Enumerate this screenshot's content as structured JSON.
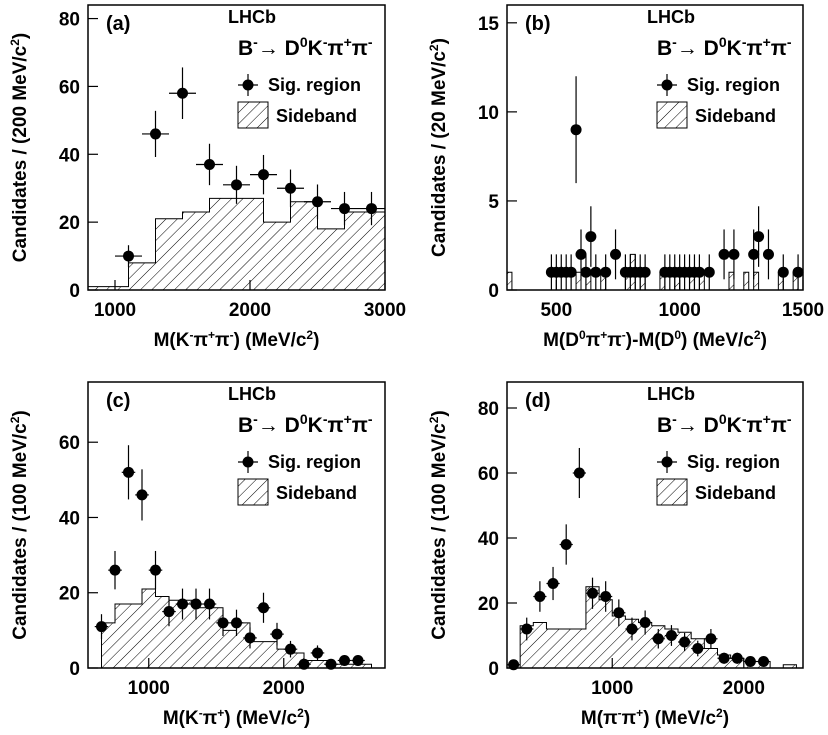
{
  "colors": {
    "ink": "#000000",
    "background": "#ffffff"
  },
  "chart_data": [
    {
      "type": "histogram",
      "panel_label": "(a)",
      "experiment": "LHCb",
      "decay": {
        "parts": [
          "B",
          "-",
          "→ D",
          "0",
          "K",
          "-",
          "π",
          "+",
          "π",
          "-"
        ]
      },
      "legend": {
        "data_label": "Sig. region",
        "band_label": "Sideband",
        "placement": "top-right"
      },
      "xlabel": {
        "parts": [
          "M(K",
          "-",
          "π",
          "+",
          "π",
          "-",
          ") (MeV/c",
          "2",
          ")"
        ]
      },
      "ylabel": {
        "parts": [
          "Candidates / (200 MeV/c",
          "2",
          ")"
        ]
      },
      "xlim": [
        800,
        3000
      ],
      "ylim": [
        0,
        84
      ],
      "xticks": [
        1000,
        2000,
        3000
      ],
      "yticks": [
        0,
        20,
        40,
        60,
        80
      ],
      "sideband": {
        "edges": [
          800,
          1000,
          1100,
          1300,
          1500,
          1700,
          1900,
          2100,
          2300,
          2500,
          2700,
          2900,
          3000
        ],
        "values": [
          1,
          1,
          8,
          21,
          23,
          27,
          27,
          20,
          26,
          18,
          23,
          23
        ]
      },
      "signal": {
        "x": [
          1100,
          1300,
          1500,
          1700,
          1900,
          2100,
          2300,
          2500,
          2700,
          2900
        ],
        "y": [
          10,
          46,
          58,
          37,
          31,
          34,
          30,
          26,
          24,
          24
        ],
        "err": [
          3.2,
          6.8,
          7.6,
          6.1,
          5.6,
          5.8,
          5.5,
          5.1,
          4.9,
          4.9
        ],
        "xerr": 100
      }
    },
    {
      "type": "histogram",
      "panel_label": "(b)",
      "experiment": "LHCb",
      "decay": {
        "parts": [
          "B",
          "-",
          "→ D",
          "0",
          "K",
          "-",
          "π",
          "+",
          "π",
          "-"
        ]
      },
      "legend": {
        "data_label": "Sig. region",
        "band_label": "Sideband",
        "placement": "top-right"
      },
      "xlabel": {
        "parts": [
          "M(D",
          "0",
          "π",
          "+",
          "π",
          "-",
          ")-M(D",
          "0",
          ") (MeV/c",
          "2",
          ")"
        ]
      },
      "ylabel": {
        "parts": [
          "Candidates / (20 MeV/c",
          "2",
          ")"
        ]
      },
      "xlim": [
        300,
        1500
      ],
      "ylim": [
        0,
        16
      ],
      "xticks": [
        500,
        1000,
        1500
      ],
      "yticks": [
        0,
        5,
        10,
        15
      ],
      "sideband": {
        "edges": [
          300,
          320,
          340,
          360,
          380,
          400,
          420,
          440,
          460,
          480,
          500,
          520,
          540,
          560,
          580,
          600,
          620,
          640,
          660,
          680,
          700,
          720,
          740,
          760,
          780,
          800,
          820,
          840,
          860,
          880,
          900,
          920,
          940,
          960,
          980,
          1000,
          1020,
          1040,
          1060,
          1080,
          1100,
          1120,
          1140,
          1160,
          1180,
          1200,
          1220,
          1240,
          1260,
          1280,
          1300,
          1320,
          1340,
          1360,
          1380,
          1400,
          1420,
          1440,
          1460,
          1480,
          1500
        ],
        "values": [
          1,
          0,
          0,
          0,
          0,
          0,
          0,
          0,
          0,
          0,
          0,
          0,
          0,
          0,
          1,
          0,
          1,
          0,
          0,
          1,
          0,
          0,
          0,
          0,
          1,
          2,
          0,
          1,
          0,
          0,
          0,
          1,
          0,
          0,
          1,
          0,
          0,
          1,
          0,
          1,
          0,
          0,
          0,
          0,
          0,
          1,
          0,
          0,
          1,
          0,
          1,
          0,
          0,
          0,
          0,
          1,
          0,
          0,
          1,
          0
        ]
      },
      "signal": {
        "x": [
          480,
          500,
          520,
          540,
          560,
          580,
          600,
          620,
          640,
          660,
          700,
          740,
          780,
          800,
          820,
          840,
          860,
          940,
          960,
          980,
          1000,
          1020,
          1040,
          1060,
          1080,
          1120,
          1180,
          1220,
          1300,
          1320,
          1360,
          1420,
          1480
        ],
        "y": [
          1,
          1,
          1,
          1,
          1,
          9,
          2,
          1,
          3,
          1,
          1,
          2,
          1,
          1,
          1,
          1,
          1,
          1,
          1,
          1,
          1,
          1,
          1,
          1,
          1,
          1,
          2,
          2,
          2,
          3,
          2,
          1,
          1
        ],
        "err": [
          1,
          1,
          1,
          1,
          1,
          3,
          1.4,
          1,
          1.7,
          1,
          1,
          1.4,
          1,
          1,
          1,
          1,
          1,
          1,
          1,
          1,
          1,
          1,
          1,
          1,
          1,
          1,
          1.4,
          1.4,
          1.4,
          1.7,
          1.4,
          1,
          1
        ],
        "xerr": 10
      }
    },
    {
      "type": "histogram",
      "panel_label": "(c)",
      "experiment": "LHCb",
      "decay": {
        "parts": [
          "B",
          "-",
          "→ D",
          "0",
          "K",
          "-",
          "π",
          "+",
          "π",
          "-"
        ]
      },
      "legend": {
        "data_label": "Sig. region",
        "band_label": "Sideband",
        "placement": "top-right"
      },
      "xlabel": {
        "parts": [
          "M(K",
          "-",
          "π",
          "+",
          ") (MeV/c",
          "2",
          ")"
        ]
      },
      "ylabel": {
        "parts": [
          "Candidates / (100 MeV/c",
          "2",
          ")"
        ]
      },
      "xlim": [
        550,
        2750
      ],
      "ylim": [
        0,
        76
      ],
      "xticks": [
        1000,
        2000
      ],
      "yticks": [
        0,
        20,
        40,
        60
      ],
      "sideband": {
        "edges": [
          650,
          750,
          850,
          950,
          1050,
          1150,
          1250,
          1350,
          1450,
          1550,
          1650,
          1750,
          1850,
          1950,
          2050,
          2150,
          2250,
          2350,
          2450,
          2550,
          2650
        ],
        "values": [
          12,
          17,
          17,
          21,
          19,
          18,
          18,
          16,
          16,
          10,
          12,
          7,
          7,
          5,
          4,
          2,
          2,
          1,
          1,
          1
        ]
      },
      "signal": {
        "x": [
          650,
          750,
          850,
          950,
          1050,
          1150,
          1250,
          1350,
          1450,
          1550,
          1650,
          1750,
          1850,
          1950,
          2050,
          2150,
          2250,
          2350,
          2450,
          2550
        ],
        "y": [
          11,
          26,
          52,
          46,
          26,
          15,
          17,
          17,
          17,
          12,
          12,
          8,
          16,
          9,
          5,
          1,
          4,
          1,
          2,
          2
        ],
        "err": [
          3.3,
          5.1,
          7.2,
          6.8,
          5.1,
          3.9,
          4.1,
          4.1,
          4.1,
          3.5,
          3.5,
          2.8,
          4,
          3,
          2.2,
          1,
          2,
          1,
          1.4,
          1.4
        ],
        "xerr": 50
      }
    },
    {
      "type": "histogram",
      "panel_label": "(d)",
      "experiment": "LHCb",
      "decay": {
        "parts": [
          "B",
          "-",
          "→ D",
          "0",
          "K",
          "-",
          "π",
          "+",
          "π",
          "-"
        ]
      },
      "legend": {
        "data_label": "Sig. region",
        "band_label": "Sideband",
        "placement": "top-right"
      },
      "xlabel": {
        "parts": [
          "M(π",
          "-",
          "π",
          "+",
          ") (MeV/c",
          "2",
          ")"
        ]
      },
      "ylabel": {
        "parts": [
          "Candidates / (100 MeV/c",
          "2",
          ")"
        ]
      },
      "xlim": [
        200,
        2450
      ],
      "ylim": [
        0,
        88
      ],
      "xticks": [
        1000,
        2000
      ],
      "yticks": [
        0,
        20,
        40,
        60,
        80
      ],
      "sideband": {
        "edges": [
          300,
          400,
          500,
          600,
          700,
          800,
          900,
          1000,
          1100,
          1200,
          1300,
          1400,
          1500,
          1600,
          1700,
          1800,
          1900,
          2000,
          2100,
          2200,
          2300,
          2400
        ],
        "values": [
          13,
          14,
          12,
          12,
          12,
          25,
          21,
          16,
          15,
          14,
          13,
          12,
          11,
          9,
          6,
          4,
          3,
          2,
          2,
          0,
          1
        ]
      },
      "signal": {
        "x": [
          250,
          350,
          450,
          550,
          650,
          750,
          850,
          950,
          1050,
          1150,
          1250,
          1350,
          1450,
          1550,
          1650,
          1750,
          1850,
          1950,
          2050,
          2150
        ],
        "y": [
          1,
          12,
          22,
          26,
          38,
          60,
          23,
          22,
          17,
          12,
          14,
          9,
          10,
          8,
          6,
          9,
          3,
          3,
          2,
          2
        ],
        "err": [
          1,
          3.5,
          4.7,
          5.1,
          6.2,
          7.7,
          4.8,
          4.7,
          4.1,
          3.5,
          3.7,
          3,
          3.2,
          2.8,
          2.4,
          3,
          1.7,
          1.7,
          1.4,
          1.4
        ],
        "xerr": 50
      }
    }
  ]
}
